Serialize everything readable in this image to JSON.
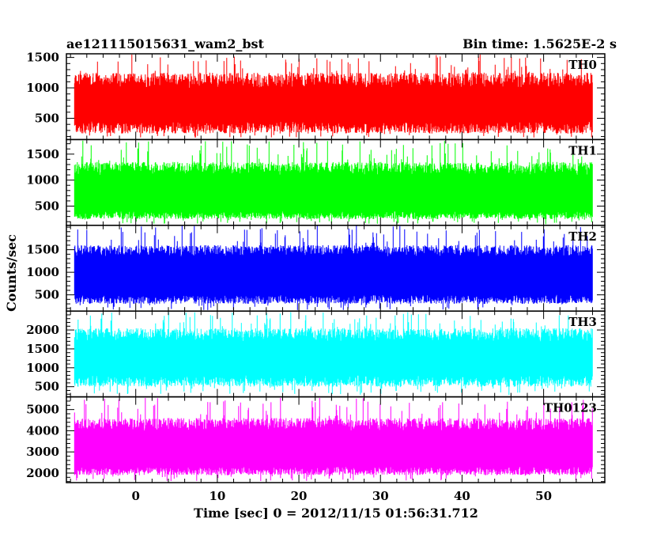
{
  "header": {
    "left_title": "ae121115015631_wam2_bst",
    "right_title": "Bin time: 1.5625E-2 s"
  },
  "chart_data": {
    "type": "line",
    "title": "ae121115015631_wam2_bst",
    "subtitle": "Bin time: 1.5625E-2 s",
    "xlabel": "Time [sec] 0 = 2012/11/15 01:56:31.712",
    "ylabel": "Counts/sec",
    "xlim": [
      -8.5,
      57.5
    ],
    "x_data_range": [
      -7.5,
      56
    ],
    "x_ticks": [
      0,
      10,
      20,
      30,
      40,
      50
    ],
    "x_tick_labels": [
      "0",
      "10",
      "20",
      "30",
      "40",
      "50"
    ],
    "bin_time_s": 0.015625,
    "series": [
      {
        "name": "TH0",
        "color": "#ff0000",
        "ylim": [
          150,
          1560
        ],
        "y_ticks": [
          500,
          1000,
          1500
        ],
        "y_tick_labels": [
          "500",
          "1000",
          "1500"
        ],
        "band_low": [
          250,
          450
        ],
        "band_high": [
          1000,
          1250
        ],
        "min": 180,
        "max": 1560
      },
      {
        "name": "TH1",
        "color": "#00ff00",
        "ylim": [
          130,
          1780
        ],
        "y_ticks": [
          500,
          1000,
          1500
        ],
        "y_tick_labels": [
          "500",
          "1000",
          "1500"
        ],
        "band_low": [
          250,
          400
        ],
        "band_high": [
          1100,
          1350
        ],
        "min": 150,
        "max": 1760
      },
      {
        "name": "TH2",
        "color": "#0000ff",
        "ylim": [
          140,
          2040
        ],
        "y_ticks": [
          500,
          1000,
          1500
        ],
        "y_tick_labels": [
          "500",
          "1000",
          "1500"
        ],
        "band_low": [
          300,
          500
        ],
        "band_high": [
          1350,
          1600
        ],
        "min": 160,
        "max": 2030
      },
      {
        "name": "TH3",
        "color": "#00ffff",
        "ylim": [
          230,
          2500
        ],
        "y_ticks": [
          500,
          1000,
          1500,
          2000
        ],
        "y_tick_labels": [
          "500",
          "1000",
          "1500",
          "2000"
        ],
        "band_low": [
          500,
          800
        ],
        "band_high": [
          1700,
          2050
        ],
        "min": 280,
        "max": 2480
      },
      {
        "name": "TH0123",
        "color": "#ff00ff",
        "ylim": [
          1550,
          5600
        ],
        "y_ticks": [
          2000,
          3000,
          4000,
          5000
        ],
        "y_tick_labels": [
          "2000",
          "3000",
          "4000",
          "5000"
        ],
        "band_low": [
          1900,
          2300
        ],
        "band_high": [
          4000,
          4600
        ],
        "min": 1620,
        "max": 5550
      }
    ],
    "grid": false,
    "legend": "panel labels top-right"
  }
}
